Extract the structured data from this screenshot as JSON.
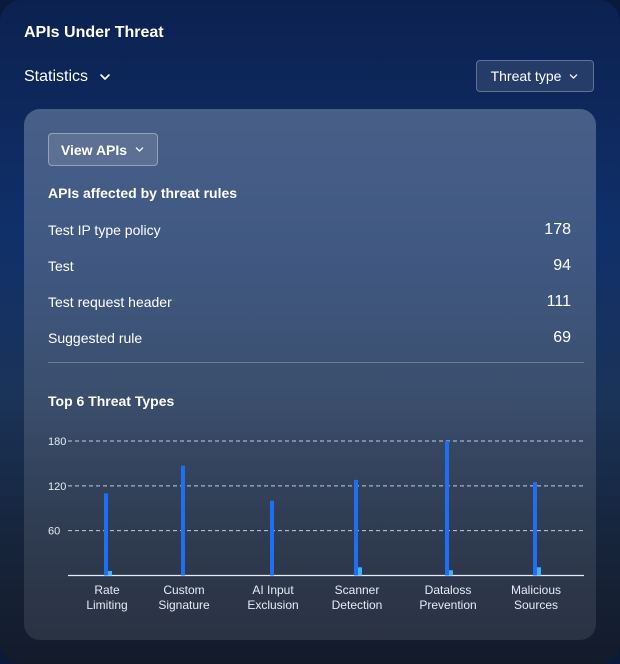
{
  "header": {
    "title": "APIs Under Threat",
    "statistics_label": "Statistics",
    "threat_type_label": "Threat type"
  },
  "panel": {
    "view_apis_label": "View APIs",
    "rules_title": "APIs affected by threat rules",
    "rules": [
      {
        "name": "Test IP type policy",
        "count": "178"
      },
      {
        "name": "Test",
        "count": "94"
      },
      {
        "name": "Test request header",
        "count": "111"
      },
      {
        "name": "Suggested rule",
        "count": "69"
      }
    ],
    "threats_title": "Top 6 Threat Types"
  },
  "colors": {
    "primary_bar": "#1f6ff2",
    "secondary_bar": "#3fb2ff",
    "grid": "#dfe6f0"
  },
  "chart_data": {
    "type": "bar",
    "title": "Top 6 Threat Types",
    "categories": [
      [
        "Rate",
        "Limiting"
      ],
      [
        "Custom",
        "Signature"
      ],
      [
        "AI Input",
        "Exclusion"
      ],
      [
        "Scanner",
        "Detection"
      ],
      [
        "Dataloss",
        "Prevention"
      ],
      [
        "Malicious",
        "Sources"
      ]
    ],
    "series": [
      {
        "values": [
          110,
          147,
          100,
          128,
          180,
          125
        ]
      },
      {
        "values": [
          6,
          0,
          0,
          11,
          7,
          11
        ]
      }
    ],
    "yticks": [
      60,
      120,
      180
    ],
    "ylim": [
      0,
      180
    ],
    "grid": "dashed-horizontal"
  }
}
